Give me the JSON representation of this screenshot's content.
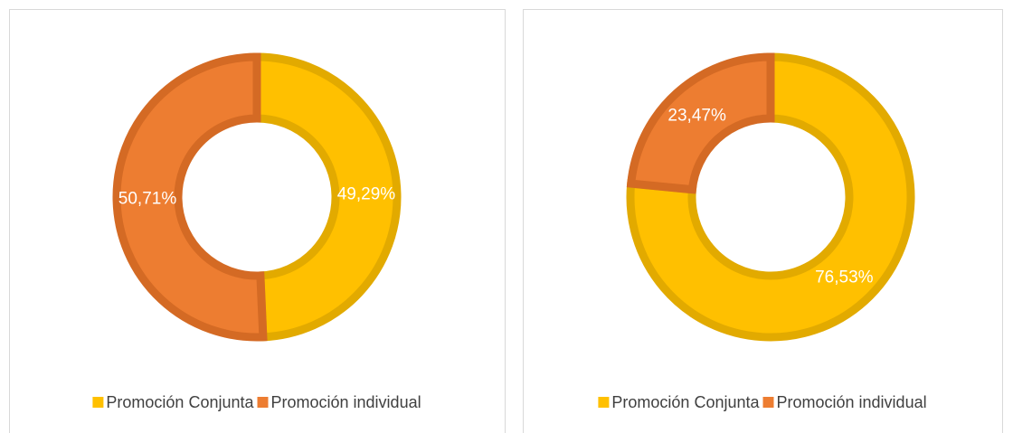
{
  "chart_data": [
    {
      "type": "donut",
      "categories": [
        "Promoción Conjunta",
        "Promoción individual"
      ],
      "values": [
        49.29,
        50.71
      ],
      "value_labels": [
        "49,29%",
        "50,71%"
      ],
      "colors": [
        "#FFC000",
        "#ED7D31"
      ],
      "edgecolors": [
        "#E2AA00",
        "#D46A24"
      ],
      "legend": "bottom"
    },
    {
      "type": "donut",
      "categories": [
        "Promoción Conjunta",
        "Promoción individual"
      ],
      "values": [
        76.53,
        23.47
      ],
      "value_labels": [
        "76,53%",
        "23,47%"
      ],
      "colors": [
        "#FFC000",
        "#ED7D31"
      ],
      "edgecolors": [
        "#E2AA00",
        "#D46A24"
      ],
      "legend": "bottom"
    }
  ]
}
